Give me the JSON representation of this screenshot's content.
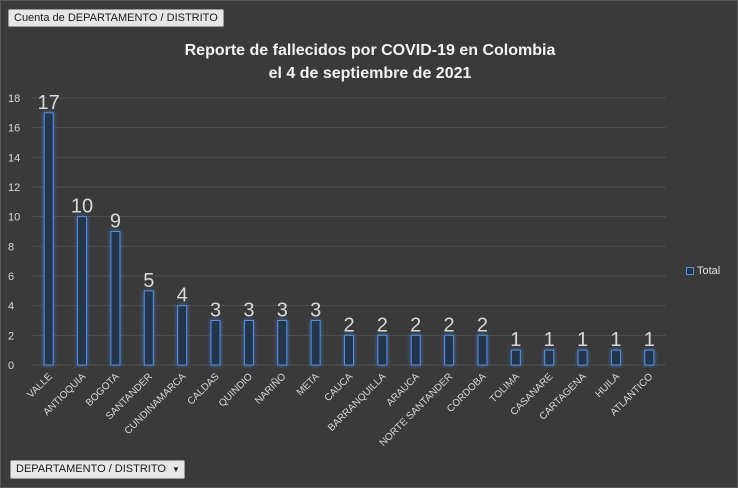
{
  "field_button": {
    "label": "Cuenta de DEPARTAMENTO / DISTRITO"
  },
  "axis_button": {
    "label": "DEPARTAMENTO / DISTRITO",
    "icon": "dropdown-arrow-icon"
  },
  "chart_data": {
    "type": "bar",
    "title_lines": [
      "Reporte de fallecidos por COVID-19  en Colombia",
      "el 4 de septiembre de 2021"
    ],
    "categories": [
      "VALLE",
      "ANTIOQUIA",
      "BOGOTA",
      "SANTANDER",
      "CUNDINAMARCA",
      "CALDAS",
      "QUINDIO",
      "NARIÑO",
      "META",
      "CAUCA",
      "BARRANQUILLA",
      "ARAUCA",
      "NORTE SANTANDER",
      "CORDOBA",
      "TOLIMA",
      "CASANARE",
      "CARTAGENA",
      "HUILA",
      "ATLANTICO"
    ],
    "series": [
      {
        "name": "Total",
        "values": [
          17,
          10,
          9,
          5,
          4,
          3,
          3,
          3,
          3,
          2,
          2,
          2,
          2,
          2,
          1,
          1,
          1,
          1,
          1
        ]
      }
    ],
    "ylim": [
      0,
      18
    ],
    "yticks": [
      0,
      2,
      4,
      6,
      8,
      10,
      12,
      14,
      16,
      18
    ],
    "grid": true,
    "legend": "right",
    "data_labels": true,
    "colors": {
      "bar_fill": "#24344c",
      "bar_edge": "#5b8fd6",
      "glow": "#3f74c7",
      "grid": "#4f4f4f",
      "text": "#d9d9d9"
    }
  }
}
